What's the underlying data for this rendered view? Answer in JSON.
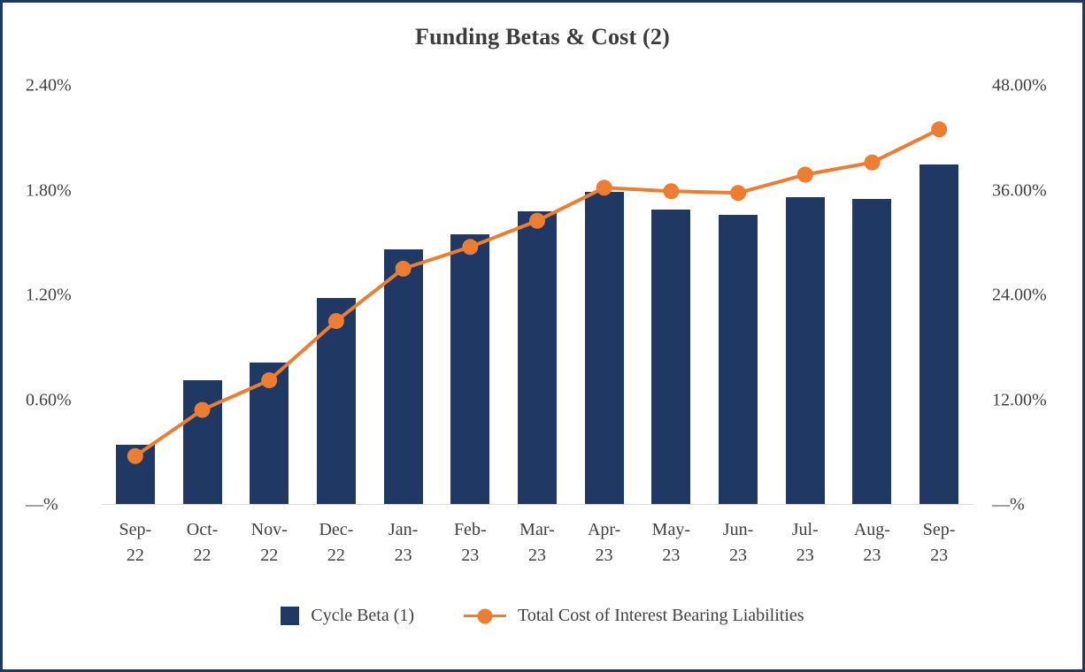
{
  "title": "Funding Betas & Cost (2)",
  "colors": {
    "bar": "#1F3864",
    "line": "#ED7D31",
    "frame_border": "#1F3864",
    "axis_text": "#404040",
    "baseline": "#D9D9D9"
  },
  "chart_data": {
    "type": "bar",
    "subtype": "combo-bar-line-dual-axis",
    "title": "Funding Betas & Cost (2)",
    "categories": [
      "Sep-22",
      "Oct-22",
      "Nov-22",
      "Dec-22",
      "Jan-23",
      "Feb-23",
      "Mar-23",
      "Apr-23",
      "May-23",
      "Jun-23",
      "Jul-23",
      "Aug-23",
      "Sep-23"
    ],
    "series": [
      {
        "name": "Cycle Beta (1)",
        "type": "bar",
        "axis": "left",
        "values": [
          0.34,
          0.71,
          0.81,
          1.18,
          1.46,
          1.55,
          1.68,
          1.79,
          1.69,
          1.66,
          1.76,
          1.75,
          1.95
        ]
      },
      {
        "name": "Total Cost of Interest Bearing Liabilities",
        "type": "line",
        "axis": "right",
        "values": [
          5.5,
          10.8,
          14.2,
          21.0,
          27.0,
          29.5,
          32.5,
          36.3,
          35.9,
          35.7,
          37.8,
          39.2,
          43.0
        ]
      }
    ],
    "left_axis": {
      "min": 0,
      "max": 2.4,
      "ticks": [
        {
          "value": 2.4,
          "label": "2.40%"
        },
        {
          "value": 1.8,
          "label": "1.80%"
        },
        {
          "value": 1.2,
          "label": "1.20%"
        },
        {
          "value": 0.6,
          "label": "0.60%"
        },
        {
          "value": 0,
          "label": "—%"
        }
      ]
    },
    "right_axis": {
      "min": 0,
      "max": 48,
      "ticks": [
        {
          "value": 48,
          "label": "48.00%"
        },
        {
          "value": 36,
          "label": "36.00%"
        },
        {
          "value": 24,
          "label": "24.00%"
        },
        {
          "value": 12,
          "label": "12.00%"
        },
        {
          "value": 0,
          "label": "—%"
        }
      ]
    },
    "legend": [
      {
        "label": "Cycle Beta (1)",
        "marker": "square"
      },
      {
        "label": "Total Cost of Interest Bearing Liabilities",
        "marker": "line-dot"
      }
    ],
    "grid": false,
    "legend_position": "bottom"
  }
}
